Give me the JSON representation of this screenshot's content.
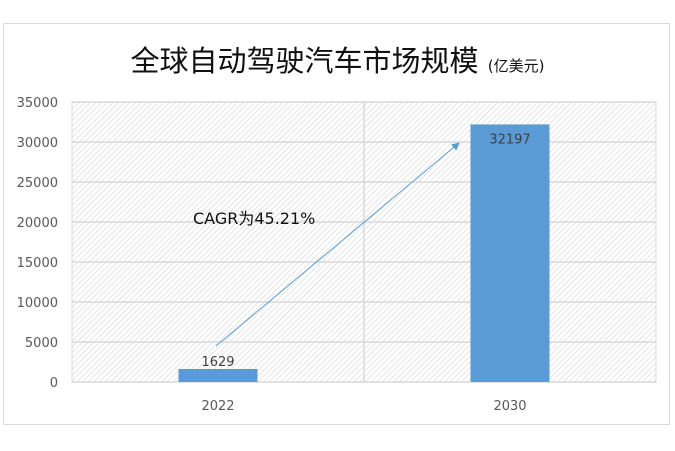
{
  "chart_data": {
    "type": "bar",
    "title": "全球自动驾驶汽车市场规模",
    "unit": "(亿美元)",
    "categories": [
      "2022",
      "2030"
    ],
    "values": [
      1629,
      32197
    ],
    "ylim": [
      0,
      35000
    ],
    "yticks": [
      0,
      5000,
      10000,
      15000,
      20000,
      25000,
      30000,
      35000
    ],
    "grid": true,
    "bar_color": "#5b9bd5",
    "annotation": "CAGR为45.21%"
  }
}
